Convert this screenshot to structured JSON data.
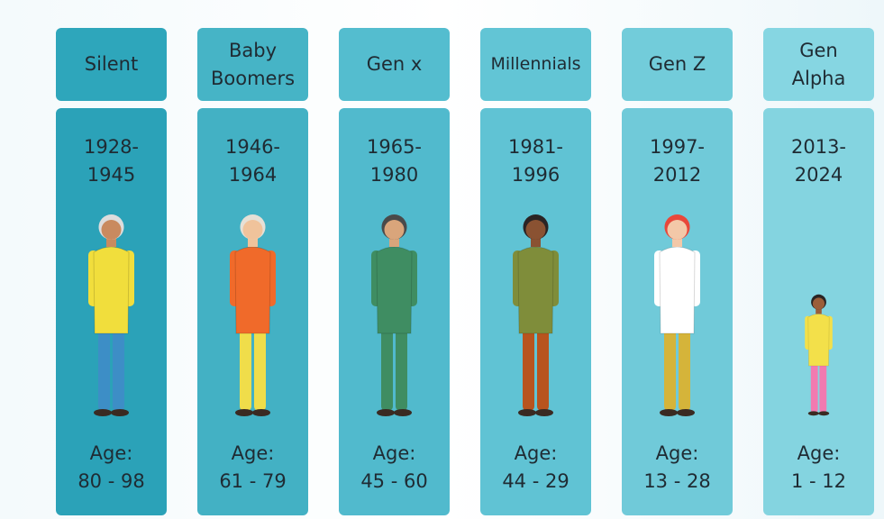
{
  "generations": [
    {
      "name": "Silent",
      "years": [
        "1928-",
        "1945"
      ],
      "age_label": "Age:",
      "age": "80 - 98"
    },
    {
      "name": "Baby Boomers",
      "years": [
        "1946-",
        "1964"
      ],
      "age_label": "Age:",
      "age": "61 - 79"
    },
    {
      "name": "Gen x",
      "years": [
        "1965-",
        "1980"
      ],
      "age_label": "Age:",
      "age": "45 - 60"
    },
    {
      "name": "Millennials",
      "years": [
        "1981-",
        "1996"
      ],
      "age_label": "Age:",
      "age": "44 - 29"
    },
    {
      "name": "Gen Z",
      "years": [
        "1997-",
        "2012"
      ],
      "age_label": "Age:",
      "age": "13 - 28"
    },
    {
      "name": "Gen Alpha",
      "years": [
        "2013-",
        "2024"
      ],
      "age_label": "Age:",
      "age": "1 - 12"
    }
  ]
}
